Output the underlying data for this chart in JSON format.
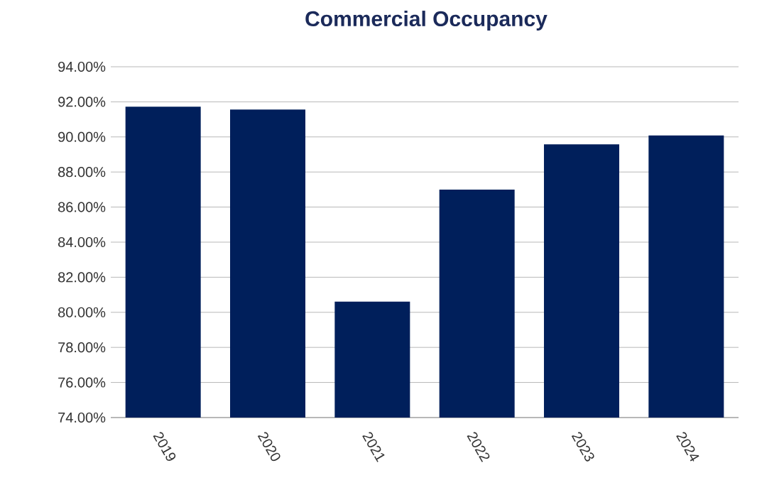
{
  "chart_data": {
    "type": "bar",
    "title": "Commercial Occupancy",
    "categories": [
      "2019",
      "2020",
      "2021",
      "2022",
      "2023",
      "2024"
    ],
    "values": [
      91.72,
      91.56,
      80.61,
      87.0,
      89.58,
      90.08
    ],
    "color": "#001f5b",
    "grid": "y",
    "ylim": [
      74,
      94
    ],
    "yticks": [
      {
        "value": 74,
        "label": "74.00%"
      },
      {
        "value": 76,
        "label": "76.00%"
      },
      {
        "value": 78,
        "label": "78.00%"
      },
      {
        "value": 80,
        "label": "80.00%"
      },
      {
        "value": 82,
        "label": "82.00%"
      },
      {
        "value": 84,
        "label": "84.00%"
      },
      {
        "value": 86,
        "label": "86.00%"
      },
      {
        "value": 88,
        "label": "88.00%"
      },
      {
        "value": 90,
        "label": "90.00%"
      },
      {
        "value": 92,
        "label": "92.00%"
      },
      {
        "value": 94,
        "label": "94.00%"
      }
    ]
  }
}
